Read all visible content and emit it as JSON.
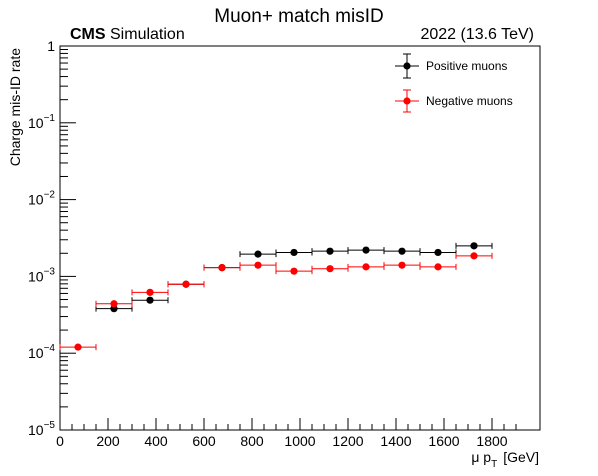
{
  "chart_data": {
    "type": "scatter",
    "title": "Muon+ match misID",
    "experiment": {
      "bold": "CMS",
      "rest": " Simulation"
    },
    "energy_label": "2022 (13.6 TeV)",
    "xlabel": {
      "main": "μ p",
      "sub": "T",
      "unit": "[GeV]"
    },
    "ylabel": "Charge mis-ID rate",
    "xlim": [
      0,
      2000
    ],
    "ylim": [
      1e-05,
      1
    ],
    "y_scale": "log",
    "x_ticks": [
      "0",
      "200",
      "400",
      "600",
      "800",
      "1000",
      "1200",
      "1400",
      "1600",
      "1800"
    ],
    "x_tick_values": [
      0,
      200,
      400,
      600,
      800,
      1000,
      1200,
      1400,
      1600,
      1800
    ],
    "y_ticks": [
      {
        "value": 1,
        "base": "1",
        "exp": ""
      },
      {
        "value": 0.1,
        "base": "10",
        "exp": "−1"
      },
      {
        "value": 0.01,
        "base": "10",
        "exp": "−2"
      },
      {
        "value": 0.001,
        "base": "10",
        "exp": "−3"
      },
      {
        "value": 0.0001,
        "base": "10",
        "exp": "−4"
      },
      {
        "value": 1e-05,
        "base": "10",
        "exp": "−5"
      }
    ],
    "legend_position": "top-right",
    "series": [
      {
        "name": "Positive muons",
        "color": "#000000",
        "points": [
          {
            "x": 225,
            "xlo": 150,
            "xhi": 300,
            "y": 0.00038
          },
          {
            "x": 375,
            "xlo": 300,
            "xhi": 450,
            "y": 0.00049
          },
          {
            "x": 525,
            "xlo": 450,
            "xhi": 600,
            "y": 0.00079
          },
          {
            "x": 675,
            "xlo": 600,
            "xhi": 750,
            "y": 0.0013
          },
          {
            "x": 825,
            "xlo": 750,
            "xhi": 900,
            "y": 0.00195
          },
          {
            "x": 975,
            "xlo": 900,
            "xhi": 1050,
            "y": 0.00205
          },
          {
            "x": 1125,
            "xlo": 1050,
            "xhi": 1200,
            "y": 0.00213
          },
          {
            "x": 1275,
            "xlo": 1200,
            "xhi": 1350,
            "y": 0.0022
          },
          {
            "x": 1425,
            "xlo": 1350,
            "xhi": 1500,
            "y": 0.00213
          },
          {
            "x": 1575,
            "xlo": 1500,
            "xhi": 1650,
            "y": 0.00205
          },
          {
            "x": 1725,
            "xlo": 1650,
            "xhi": 1800,
            "y": 0.0025
          }
        ]
      },
      {
        "name": "Negative muons",
        "color": "#ff0000",
        "points": [
          {
            "x": 75,
            "xlo": 0,
            "xhi": 150,
            "y": 0.00012
          },
          {
            "x": 225,
            "xlo": 150,
            "xhi": 300,
            "y": 0.00044
          },
          {
            "x": 375,
            "xlo": 300,
            "xhi": 450,
            "y": 0.00062
          },
          {
            "x": 525,
            "xlo": 450,
            "xhi": 600,
            "y": 0.00079
          },
          {
            "x": 675,
            "xlo": 600,
            "xhi": 750,
            "y": 0.0013
          },
          {
            "x": 825,
            "xlo": 750,
            "xhi": 900,
            "y": 0.0014
          },
          {
            "x": 975,
            "xlo": 900,
            "xhi": 1050,
            "y": 0.00117
          },
          {
            "x": 1125,
            "xlo": 1050,
            "xhi": 1200,
            "y": 0.00126
          },
          {
            "x": 1275,
            "xlo": 1200,
            "xhi": 1350,
            "y": 0.00133
          },
          {
            "x": 1425,
            "xlo": 1350,
            "xhi": 1500,
            "y": 0.0014
          },
          {
            "x": 1575,
            "xlo": 1500,
            "xhi": 1650,
            "y": 0.00133
          },
          {
            "x": 1725,
            "xlo": 1650,
            "xhi": 1800,
            "y": 0.00185
          }
        ]
      }
    ]
  }
}
